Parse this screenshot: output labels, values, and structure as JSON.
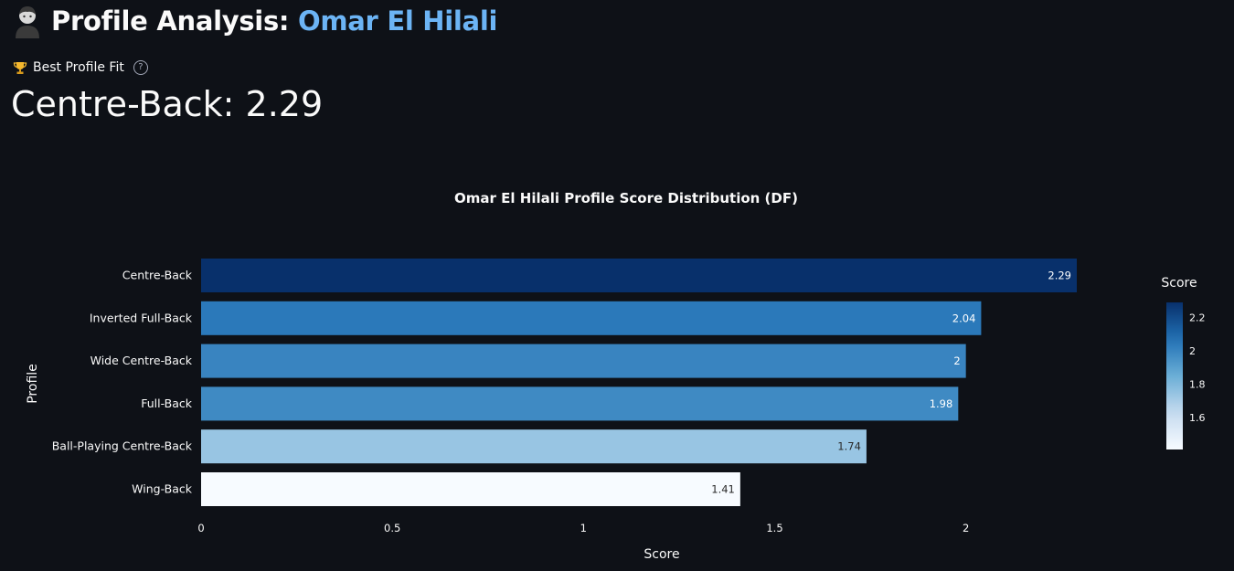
{
  "header": {
    "title_prefix": "Profile Analysis: ",
    "player_name": "Omar El Hilali"
  },
  "metric": {
    "label": "Best Profile Fit",
    "value": "Centre-Back: 2.29",
    "label_icon": "trophy-icon",
    "help_icon": "help-circle-icon"
  },
  "chart_data": {
    "type": "bar",
    "orientation": "horizontal",
    "title": "Omar El Hilali Profile Score Distribution (DF)",
    "xlabel": "Score",
    "ylabel": "Profile",
    "categories": [
      "Centre-Back",
      "Inverted Full-Back",
      "Wide Centre-Back",
      "Full-Back",
      "Ball-Playing Centre-Back",
      "Wing-Back"
    ],
    "values": [
      2.29,
      2.04,
      2,
      1.98,
      1.74,
      1.41
    ],
    "xlim": [
      0,
      2.41
    ],
    "xticks": [
      0,
      0.5,
      1,
      1.5,
      2
    ],
    "xtick_labels": [
      "0",
      "0.5",
      "1",
      "1.5",
      "2"
    ],
    "colorbar": {
      "title": "Score",
      "range": [
        1.41,
        2.29
      ],
      "ticks": [
        2.2,
        2,
        1.8,
        1.6
      ],
      "tick_labels": [
        "2.2",
        "2",
        "1.8",
        "1.6"
      ],
      "colorscale": "Blues"
    },
    "grid": false,
    "legend": "colorbar-right"
  }
}
